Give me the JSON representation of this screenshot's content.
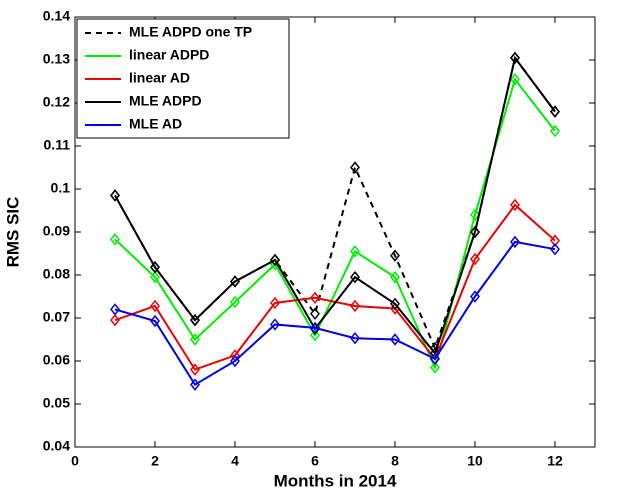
{
  "chart_data": {
    "type": "line",
    "xlabel": "Months in 2014",
    "ylabel": "RMS SIC",
    "xlim": [
      0,
      13
    ],
    "xticks": [
      0,
      2,
      4,
      6,
      8,
      10,
      12
    ],
    "ylim": [
      0.04,
      0.14
    ],
    "yticks": [
      0.04,
      0.05,
      0.06,
      0.07,
      0.08,
      0.09,
      0.1,
      0.11,
      0.12,
      0.13,
      0.14
    ],
    "legend": "upper-left",
    "marker": "diamond",
    "x": [
      1,
      2,
      3,
      4,
      5,
      6,
      7,
      8,
      9,
      10,
      11,
      12
    ],
    "series": [
      {
        "name": "MLE ADPD one TP",
        "color": "#000000",
        "linestyle": "dashed",
        "values": [
          0.0985,
          0.0818,
          0.0695,
          0.0785,
          0.0835,
          0.071,
          0.105,
          0.0845,
          0.063,
          0.09,
          0.1305,
          0.118
        ]
      },
      {
        "name": "linear ADPD",
        "color": "#00ee00",
        "linestyle": "solid",
        "values": [
          0.0883,
          0.0795,
          0.065,
          0.0737,
          0.0825,
          0.066,
          0.0855,
          0.0795,
          0.0585,
          0.094,
          0.1255,
          0.1135
        ]
      },
      {
        "name": "linear AD",
        "color": "#ee0000",
        "linestyle": "solid",
        "values": [
          0.0695,
          0.0728,
          0.058,
          0.0613,
          0.0735,
          0.0747,
          0.0728,
          0.0722,
          0.0605,
          0.0837,
          0.0963,
          0.088
        ]
      },
      {
        "name": "MLE ADPD",
        "color": "#000000",
        "linestyle": "solid",
        "values": [
          0.0985,
          0.0818,
          0.0695,
          0.0785,
          0.0835,
          0.0675,
          0.0795,
          0.0733,
          0.0618,
          0.09,
          0.1305,
          0.118
        ]
      },
      {
        "name": "MLE AD",
        "color": "#0000ee",
        "linestyle": "solid",
        "values": [
          0.072,
          0.0693,
          0.0545,
          0.06,
          0.0685,
          0.0677,
          0.0653,
          0.065,
          0.0605,
          0.075,
          0.0877,
          0.086
        ]
      }
    ]
  }
}
